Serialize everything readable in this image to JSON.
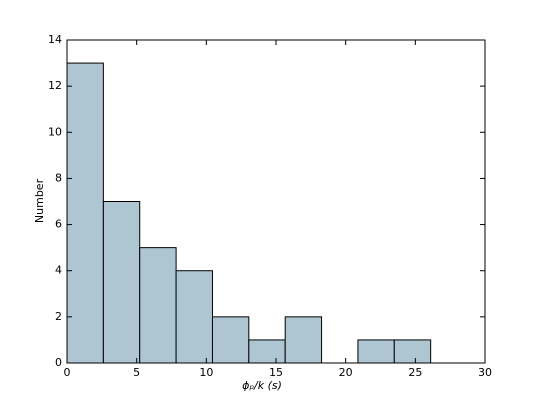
{
  "chart_data": {
    "type": "histogram",
    "xlabel": "ϕₚ/k (s)",
    "ylabel": "Number",
    "bins": [
      0,
      2.61,
      5.22,
      7.83,
      10.44,
      13.05,
      15.66,
      18.27,
      20.88,
      23.49,
      26.1
    ],
    "values": [
      13,
      7,
      5,
      4,
      2,
      1,
      2,
      0,
      1,
      1
    ],
    "color": "#aec6d1",
    "xlim": [
      0,
      30
    ],
    "xticks": [
      0,
      5,
      10,
      15,
      20,
      25,
      30
    ],
    "ylim": [
      0,
      14
    ],
    "yticks": [
      0,
      2,
      4,
      6,
      8,
      10,
      12,
      14
    ]
  }
}
